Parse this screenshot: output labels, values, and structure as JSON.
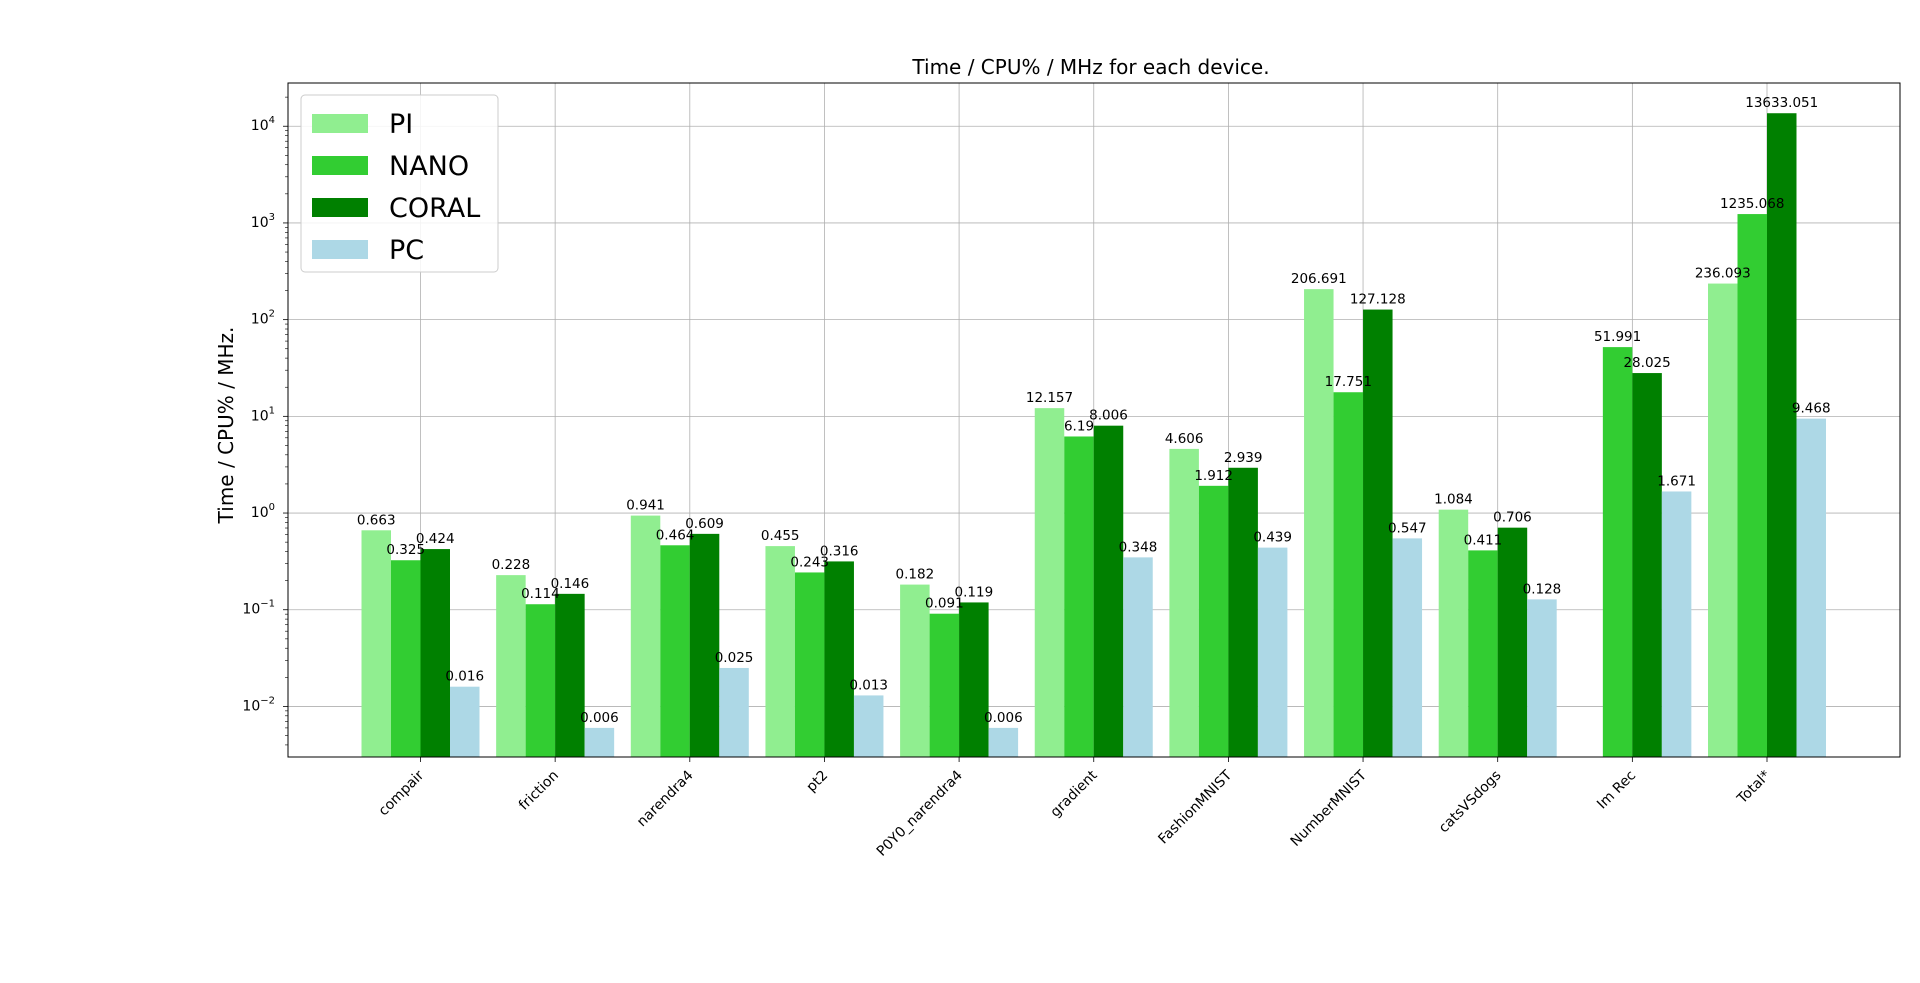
{
  "chart_data": {
    "type": "bar",
    "title": "Time / CPU% / MHz for each device.",
    "xlabel": "",
    "ylabel": "Time / CPU% / MHz.",
    "yscale": "log",
    "ylim": [
      0.003,
      28000
    ],
    "y_ticks": [
      {
        "value": 0.01,
        "base": "10",
        "exp": "−2"
      },
      {
        "value": 0.1,
        "base": "10",
        "exp": "−1"
      },
      {
        "value": 1,
        "base": "10",
        "exp": "0"
      },
      {
        "value": 10,
        "base": "10",
        "exp": "1"
      },
      {
        "value": 100,
        "base": "10",
        "exp": "2"
      },
      {
        "value": 1000,
        "base": "10",
        "exp": "3"
      },
      {
        "value": 10000,
        "base": "10",
        "exp": "4"
      }
    ],
    "grid": true,
    "legend_position": "top-left",
    "categories": [
      "compair",
      "friction",
      "narendra4",
      "pt2",
      "P0Y0_narendra4",
      "gradient",
      "FashionMNIST",
      "NumberMNIST",
      "catsVSdogs",
      "Im Rec",
      "Total*"
    ],
    "series": [
      {
        "name": "PI",
        "color": "#90ee90",
        "values": [
          0.663,
          0.228,
          0.941,
          0.455,
          0.182,
          12.157,
          4.606,
          206.691,
          1.084,
          null,
          236.093
        ]
      },
      {
        "name": "NANO",
        "color": "#32cd32",
        "values": [
          0.325,
          0.114,
          0.464,
          0.243,
          0.091,
          6.19,
          1.912,
          17.751,
          0.411,
          51.991,
          1235.068
        ]
      },
      {
        "name": "CORAL",
        "color": "#008000",
        "values": [
          0.424,
          0.146,
          0.609,
          0.316,
          0.119,
          8.006,
          2.939,
          127.128,
          0.706,
          28.025,
          13633.051
        ]
      },
      {
        "name": "PC",
        "color": "#add8e6",
        "values": [
          0.016,
          0.006,
          0.025,
          0.013,
          0.006,
          0.348,
          0.439,
          0.547,
          0.128,
          1.671,
          9.468
        ]
      }
    ]
  }
}
